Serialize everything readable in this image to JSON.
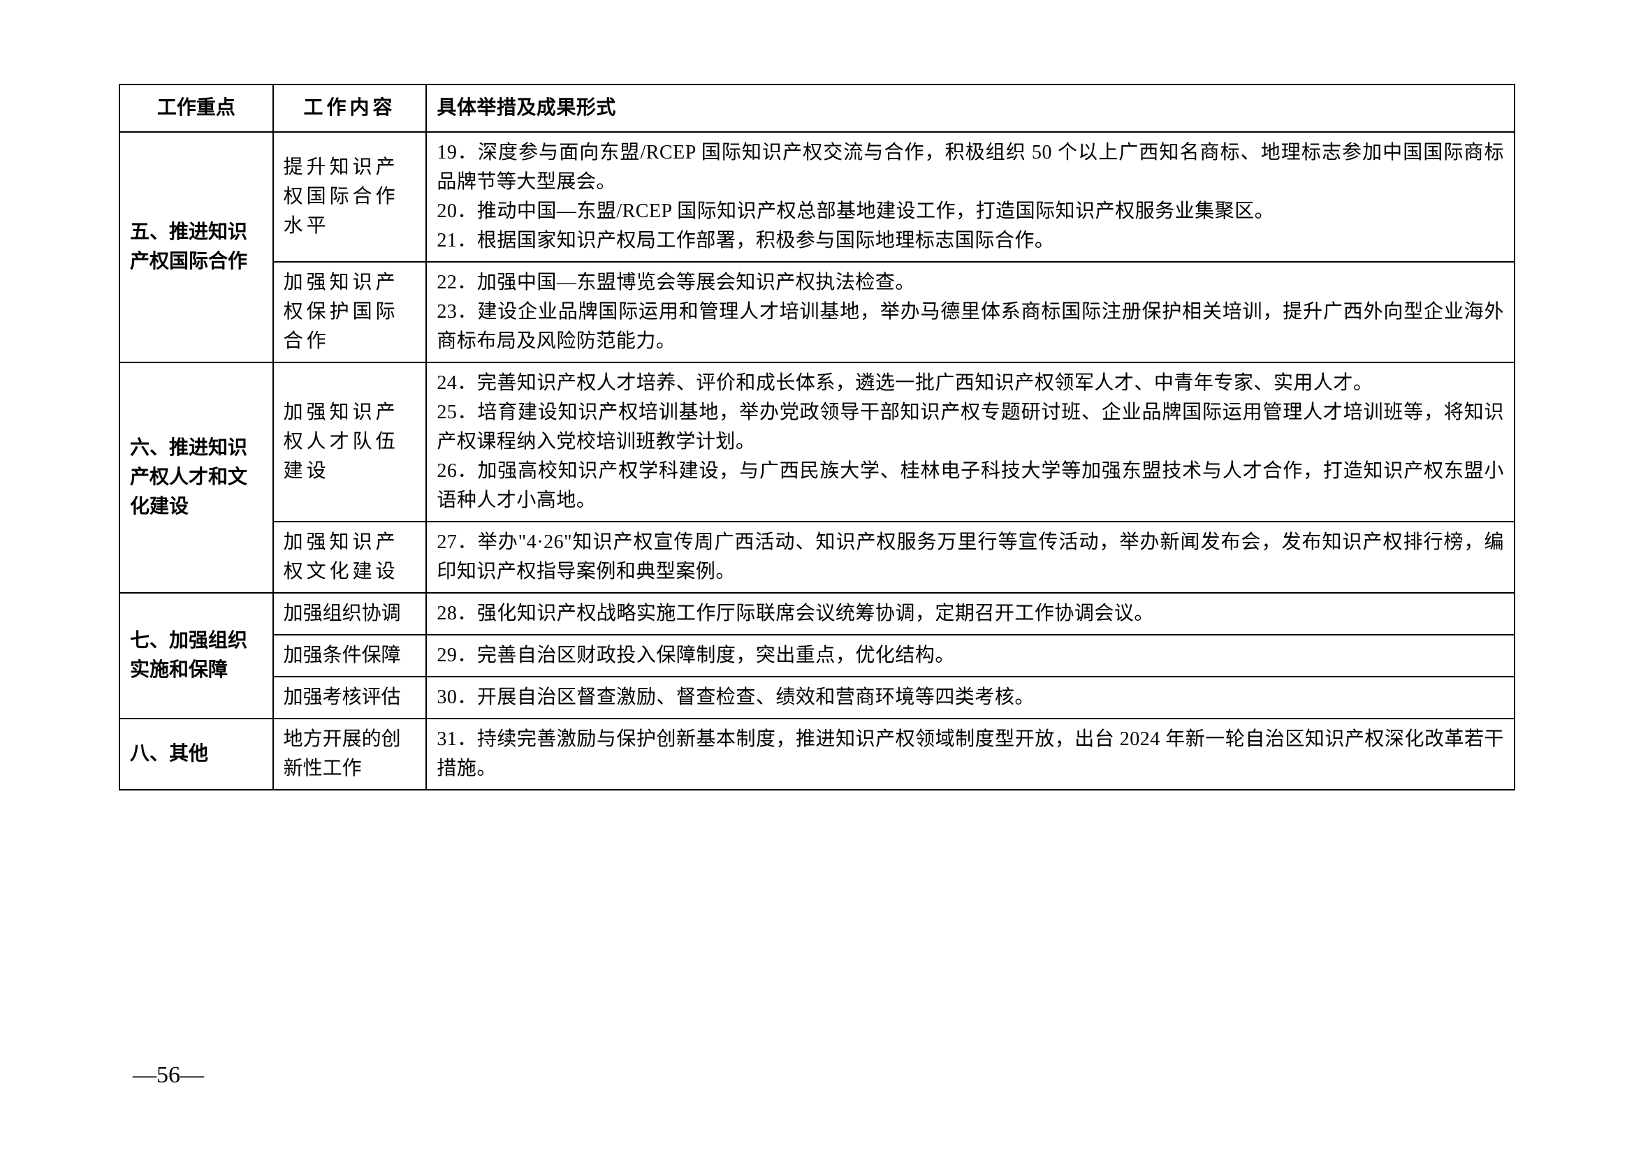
{
  "headers": {
    "col1": "工作重点",
    "col2": "工作内容",
    "col3": "具体举措及成果形式"
  },
  "rows": [
    {
      "focus": "五、推进知识产权国际合作",
      "focus_rowspan": 2,
      "content": "提升知识产权国际合作水平",
      "content_spacing": true,
      "measures": "19．深度参与面向东盟/RCEP 国际知识产权交流与合作，积极组织 50 个以上广西知名商标、地理标志参加中国国际商标品牌节等大型展会。\n20．推动中国—东盟/RCEP 国际知识产权总部基地建设工作，打造国际知识产权服务业集聚区。\n21．根据国家知识产权局工作部署，积极参与国际地理标志国际合作。"
    },
    {
      "content": "加强知识产权保护国际合作",
      "content_spacing": true,
      "measures": "22．加强中国—东盟博览会等展会知识产权执法检查。\n23．建设企业品牌国际运用和管理人才培训基地，举办马德里体系商标国际注册保护相关培训，提升广西外向型企业海外商标布局及风险防范能力。"
    },
    {
      "focus": "六、推进知识产权人才和文化建设",
      "focus_rowspan": 2,
      "content": "加强知识产权人才队伍建设",
      "content_spacing": true,
      "measures": "24．完善知识产权人才培养、评价和成长体系，遴选一批广西知识产权领军人才、中青年专家、实用人才。\n25．培育建设知识产权培训基地，举办党政领导干部知识产权专题研讨班、企业品牌国际运用管理人才培训班等，将知识产权课程纳入党校培训班教学计划。\n26．加强高校知识产权学科建设，与广西民族大学、桂林电子科技大学等加强东盟技术与人才合作，打造知识产权东盟小语种人才小高地。"
    },
    {
      "content": "加强知识产权文化建设",
      "content_spacing": true,
      "measures": "27．举办\"4·26\"知识产权宣传周广西活动、知识产权服务万里行等宣传活动，举办新闻发布会，发布知识产权排行榜，编印知识产权指导案例和典型案例。"
    },
    {
      "focus": "七、加强组织实施和保障",
      "focus_rowspan": 3,
      "content": "加强组织协调",
      "content_spacing": false,
      "measures": "28．强化知识产权战略实施工作厅际联席会议统筹协调，定期召开工作协调会议。"
    },
    {
      "content": "加强条件保障",
      "content_spacing": false,
      "measures": "29．完善自治区财政投入保障制度，突出重点，优化结构。"
    },
    {
      "content": "加强考核评估",
      "content_spacing": false,
      "measures": "30．开展自治区督查激励、督查检查、绩效和营商环境等四类考核。"
    },
    {
      "focus": "八、其他",
      "focus_rowspan": 1,
      "content": "地方开展的创新性工作",
      "content_spacing": false,
      "measures": "31．持续完善激励与保护创新基本制度，推进知识产权领域制度型开放，出台 2024 年新一轮自治区知识产权深化改革若干措施。"
    }
  ],
  "page_number": "—56—"
}
